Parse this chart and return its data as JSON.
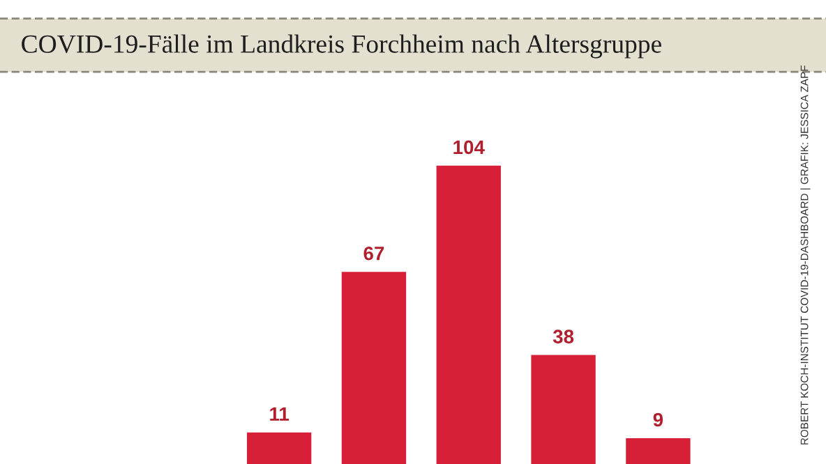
{
  "chart_data": {
    "type": "bar",
    "title": "COVID-19-Fälle im Landkreis Forchheim nach Altersgruppe",
    "categories": [
      null,
      null,
      null,
      null,
      null
    ],
    "values": [
      11,
      67,
      104,
      38,
      9
    ],
    "color": "#d81f38",
    "data_labels": true,
    "annotations": [
      "ROBERT KOCH-INSTITUT COVID-19-DASHBOARD | GRAFIK: JESSICA ZAPF"
    ]
  }
}
